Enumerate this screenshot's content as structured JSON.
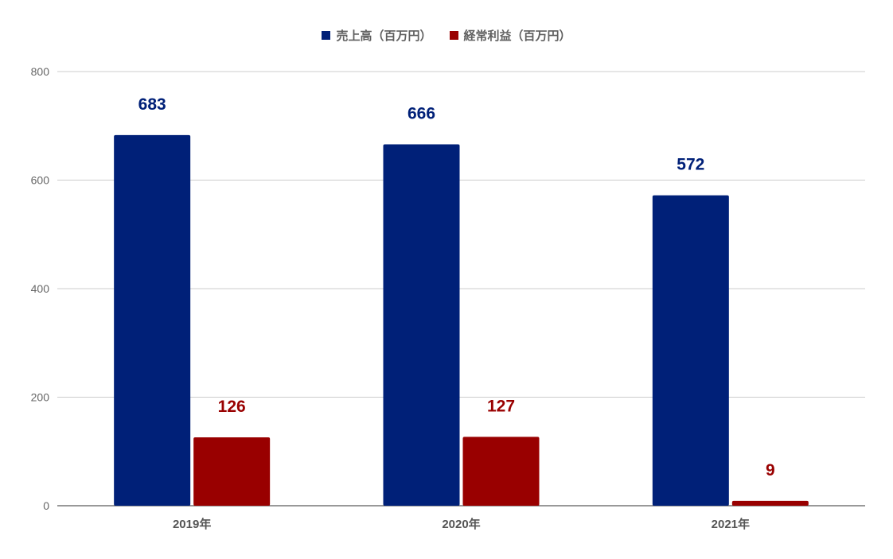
{
  "chart_data": {
    "type": "bar",
    "categories": [
      "2019年",
      "2020年",
      "2021年"
    ],
    "series": [
      {
        "name": "売上高（百万円）",
        "values": [
          683,
          666,
          572
        ],
        "color": "#002078"
      },
      {
        "name": "経常利益（百万円）",
        "values": [
          126,
          127,
          9
        ],
        "color": "#990000"
      }
    ],
    "ylim": [
      0,
      800
    ],
    "yticks": [
      0,
      200,
      400,
      600,
      800
    ],
    "grid": true,
    "legend_position": "top-center",
    "data_labels": true
  }
}
